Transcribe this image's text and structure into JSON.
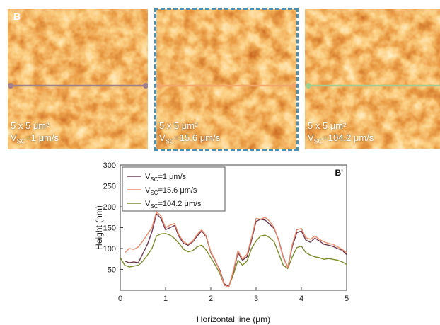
{
  "panels": [
    {
      "label": "B",
      "size": "5 x 5 μm²",
      "speed_prefix": "V",
      "speed_sub": "SC",
      "speed_value": "=1 μm/s",
      "line_color": "#a07e8c",
      "seed": 11
    },
    {
      "label": "",
      "size": "5 x 5 μm²",
      "speed_prefix": "V",
      "speed_sub": "SC",
      "speed_value": "=15.6 μm/s",
      "line_color": "#f2a66a",
      "seed": 23,
      "selected": true
    },
    {
      "label": "",
      "size": "5 x 5 μm²",
      "speed_prefix": "V",
      "speed_sub": "SC",
      "speed_value": "=104.2 μm/s",
      "line_color": "#9fcf8a",
      "seed": 37
    }
  ],
  "chart_data": {
    "type": "line",
    "panel_label": "B'",
    "xlabel": "Horizontal line (μm)",
    "ylabel": "Height (nm)",
    "xlim": [
      0,
      5
    ],
    "ylim": [
      0,
      300
    ],
    "xticks": [
      0,
      1,
      2,
      3,
      4,
      5
    ],
    "yticks": [
      50,
      100,
      150,
      200,
      250,
      300
    ],
    "legend_position": "top-left",
    "x": [
      0.0,
      0.1,
      0.2,
      0.3,
      0.4,
      0.5,
      0.6,
      0.7,
      0.8,
      0.9,
      1.0,
      1.1,
      1.2,
      1.3,
      1.4,
      1.5,
      1.6,
      1.7,
      1.8,
      1.9,
      2.0,
      2.1,
      2.2,
      2.3,
      2.4,
      2.5,
      2.6,
      2.7,
      2.8,
      2.9,
      3.0,
      3.1,
      3.2,
      3.3,
      3.4,
      3.5,
      3.6,
      3.7,
      3.8,
      3.9,
      4.0,
      4.1,
      4.2,
      4.3,
      4.4,
      4.5,
      4.6,
      4.7,
      4.8,
      4.9,
      5.0
    ],
    "series": [
      {
        "name": "=1 μm/s",
        "name_prefix": "V",
        "name_sub": "SC",
        "color": "#6e3b52",
        "values": [
          null,
          70,
          66,
          68,
          66,
          88,
          110,
          140,
          183,
          172,
          145,
          150,
          155,
          128,
          112,
          108,
          116,
          130,
          142,
          128,
          90,
          70,
          48,
          15,
          10,
          45,
          90,
          72,
          80,
          120,
          165,
          170,
          168,
          158,
          148,
          120,
          80,
          55,
          105,
          138,
          142,
          120,
          115,
          125,
          118,
          110,
          108,
          105,
          100,
          96,
          85
        ]
      },
      {
        "name": "=15.6 μm/s",
        "name_prefix": "V",
        "name_sub": "SC",
        "color": "#f08a6a",
        "values": [
          null,
          90,
          100,
          98,
          104,
          118,
          134,
          150,
          188,
          178,
          150,
          156,
          160,
          132,
          116,
          110,
          118,
          134,
          145,
          130,
          92,
          72,
          45,
          12,
          8,
          48,
          95,
          75,
          86,
          126,
          172,
          170,
          175,
          165,
          150,
          118,
          78,
          55,
          110,
          145,
          148,
          126,
          122,
          130,
          122,
          116,
          112,
          110,
          104,
          98,
          90
        ]
      },
      {
        "name": "=104.2 μm/s",
        "name_prefix": "V",
        "name_sub": "SC",
        "color": "#7c8c2c",
        "values": [
          78,
          60,
          56,
          58,
          60,
          70,
          84,
          100,
          130,
          135,
          136,
          132,
          124,
          112,
          98,
          92,
          95,
          104,
          108,
          96,
          78,
          60,
          40,
          12,
          10,
          38,
          72,
          60,
          70,
          100,
          118,
          130,
          132,
          126,
          116,
          88,
          60,
          52,
          80,
          102,
          106,
          90,
          84,
          80,
          78,
          74,
          76,
          74,
          72,
          68,
          62
        ]
      }
    ]
  }
}
